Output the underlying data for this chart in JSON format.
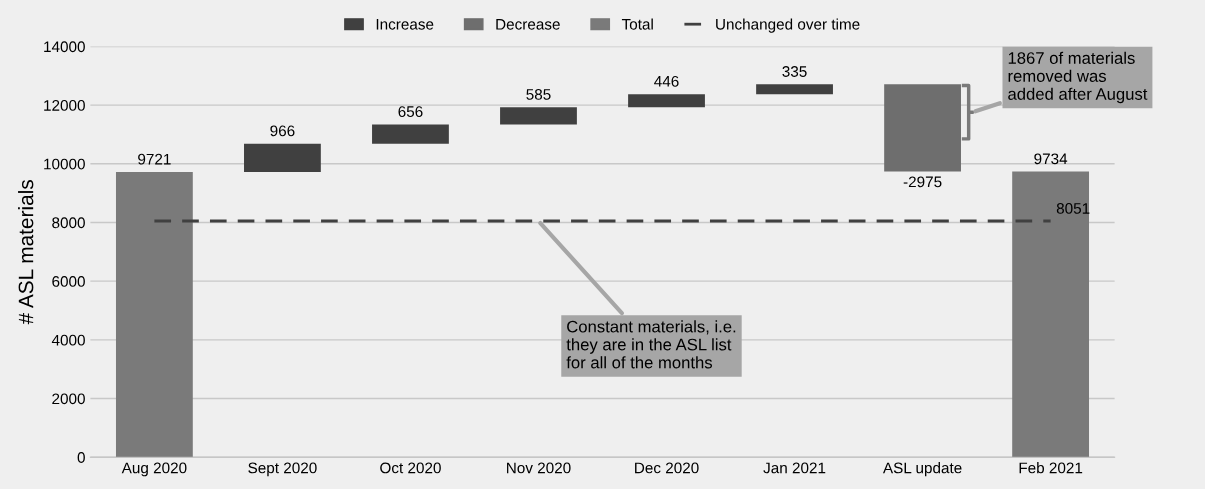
{
  "chart_data": {
    "type": "bar",
    "ylabel": "# ASL materials",
    "categories": [
      "Aug 2020",
      "Sept 2020",
      "Oct 2020",
      "Nov 2020",
      "Dec 2020",
      "Jan 2021",
      "ASL update",
      "Feb 2021"
    ],
    "series": [
      {
        "name": "Increase",
        "color": "#404040",
        "values": [
          null,
          966,
          656,
          585,
          446,
          335,
          null,
          null
        ],
        "base": [
          null,
          9721,
          10687,
          11343,
          11928,
          12374,
          null,
          null
        ]
      },
      {
        "name": "Decrease",
        "color": "#6e6e6e",
        "values": [
          null,
          null,
          null,
          null,
          null,
          null,
          -2975,
          null
        ],
        "base": [
          null,
          null,
          null,
          null,
          null,
          null,
          12709,
          null
        ]
      },
      {
        "name": "Total",
        "color": "#7a7a7a",
        "values": [
          9721,
          null,
          null,
          null,
          null,
          null,
          null,
          9734
        ]
      },
      {
        "name": "Unchanged over time",
        "type": "line",
        "line_style": "dashed",
        "color": "#404040",
        "values": [
          8051,
          8051,
          8051,
          8051,
          8051,
          8051,
          8051,
          8051
        ],
        "value_labels": [
          null,
          null,
          null,
          null,
          null,
          null,
          null,
          "8051"
        ]
      }
    ],
    "data_labels": true,
    "ylim": [
      0,
      14000
    ],
    "yticks": [
      0,
      2000,
      4000,
      6000,
      8000,
      10000,
      12000,
      14000
    ],
    "grid": "y",
    "legend": "top",
    "annotations": [
      {
        "text": "Constant materials, i.e.\nthey are in the ASL list\nfor all of the months",
        "x": "Nov 2020",
        "y": 8051
      },
      "1867 of materials\nremoved was\nadded after August"
    ]
  }
}
